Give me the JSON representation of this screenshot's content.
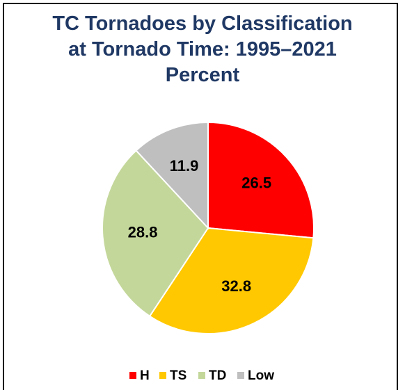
{
  "chart_data": {
    "type": "pie",
    "title": "TC Tornadoes by Classification at Tornado Time: 1995–2021 Percent",
    "categories": [
      "H",
      "TS",
      "TD",
      "Low"
    ],
    "values": [
      26.5,
      32.8,
      28.8,
      11.9
    ],
    "colors": [
      "#ff0000",
      "#ffc800",
      "#c4d79b",
      "#bfbfbf"
    ],
    "legend": "bottom"
  }
}
